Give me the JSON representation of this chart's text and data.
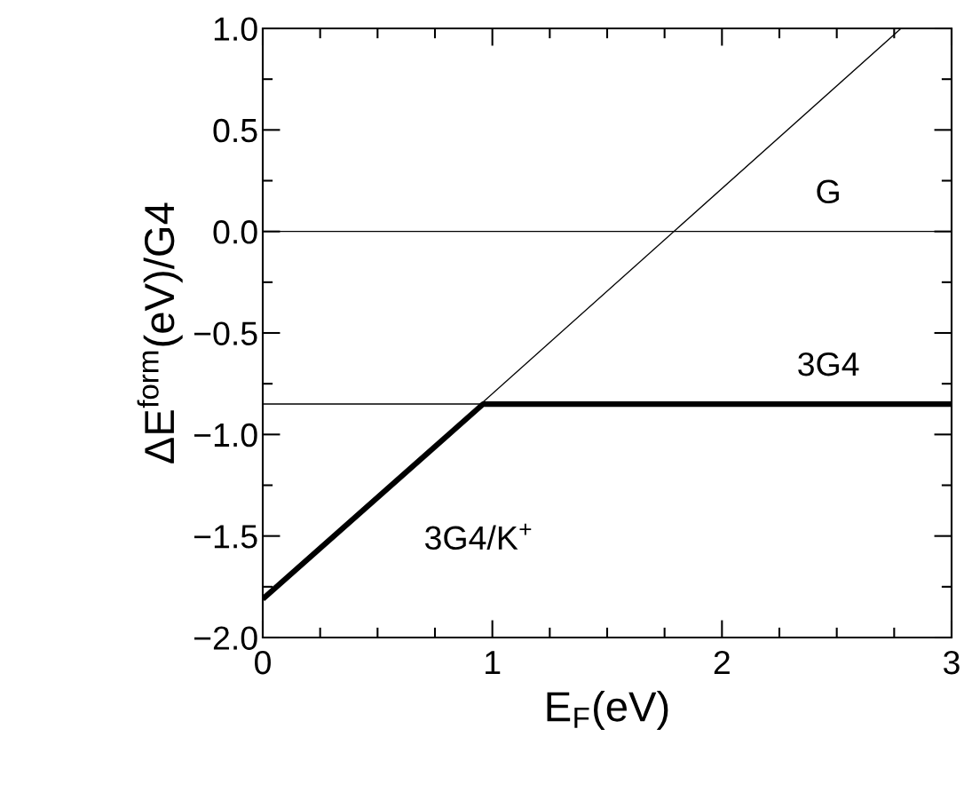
{
  "chart_data": {
    "type": "line",
    "xlabel": "E$_{F}$(eV)",
    "ylabel": "ΔE$^{form}$(eV)/G4",
    "series": [
      {
        "name": "3G4/K$^{+}$",
        "color": "#000000",
        "x": [
          0,
          2.78
        ],
        "values": [
          -1.81,
          1.0
        ]
      },
      {
        "name": "G",
        "color": "#000000",
        "x": [
          0,
          3
        ],
        "values": [
          0,
          0
        ]
      },
      {
        "name": "3G4",
        "color": "#000000",
        "x": [
          0,
          3
        ],
        "values": [
          -0.85,
          -0.85
        ]
      },
      {
        "color": "#000000",
        "x": [
          0,
          0.96,
          3
        ],
        "values": [
          -1.81,
          -0.85,
          -0.85
        ]
      }
    ],
    "xlim": [
      0,
      3
    ],
    "ylim": [
      -2.0,
      1.0
    ],
    "xticks": [
      0,
      1,
      2,
      3
    ],
    "yticks": [
      {
        "value": -2.0,
        "label": "−2.0"
      },
      {
        "value": -1.5,
        "label": "−1.5"
      },
      {
        "value": -1.0,
        "label": "−1.0"
      },
      {
        "value": -0.5,
        "label": "−0.5"
      },
      {
        "value": 0.0,
        "label": "0.0"
      },
      {
        "value": 0.5,
        "label": "0.5"
      },
      {
        "value": 1.0,
        "label": "1.0"
      }
    ],
    "grid": false,
    "legend": false,
    "marker": "none",
    "line_style": "solid"
  }
}
